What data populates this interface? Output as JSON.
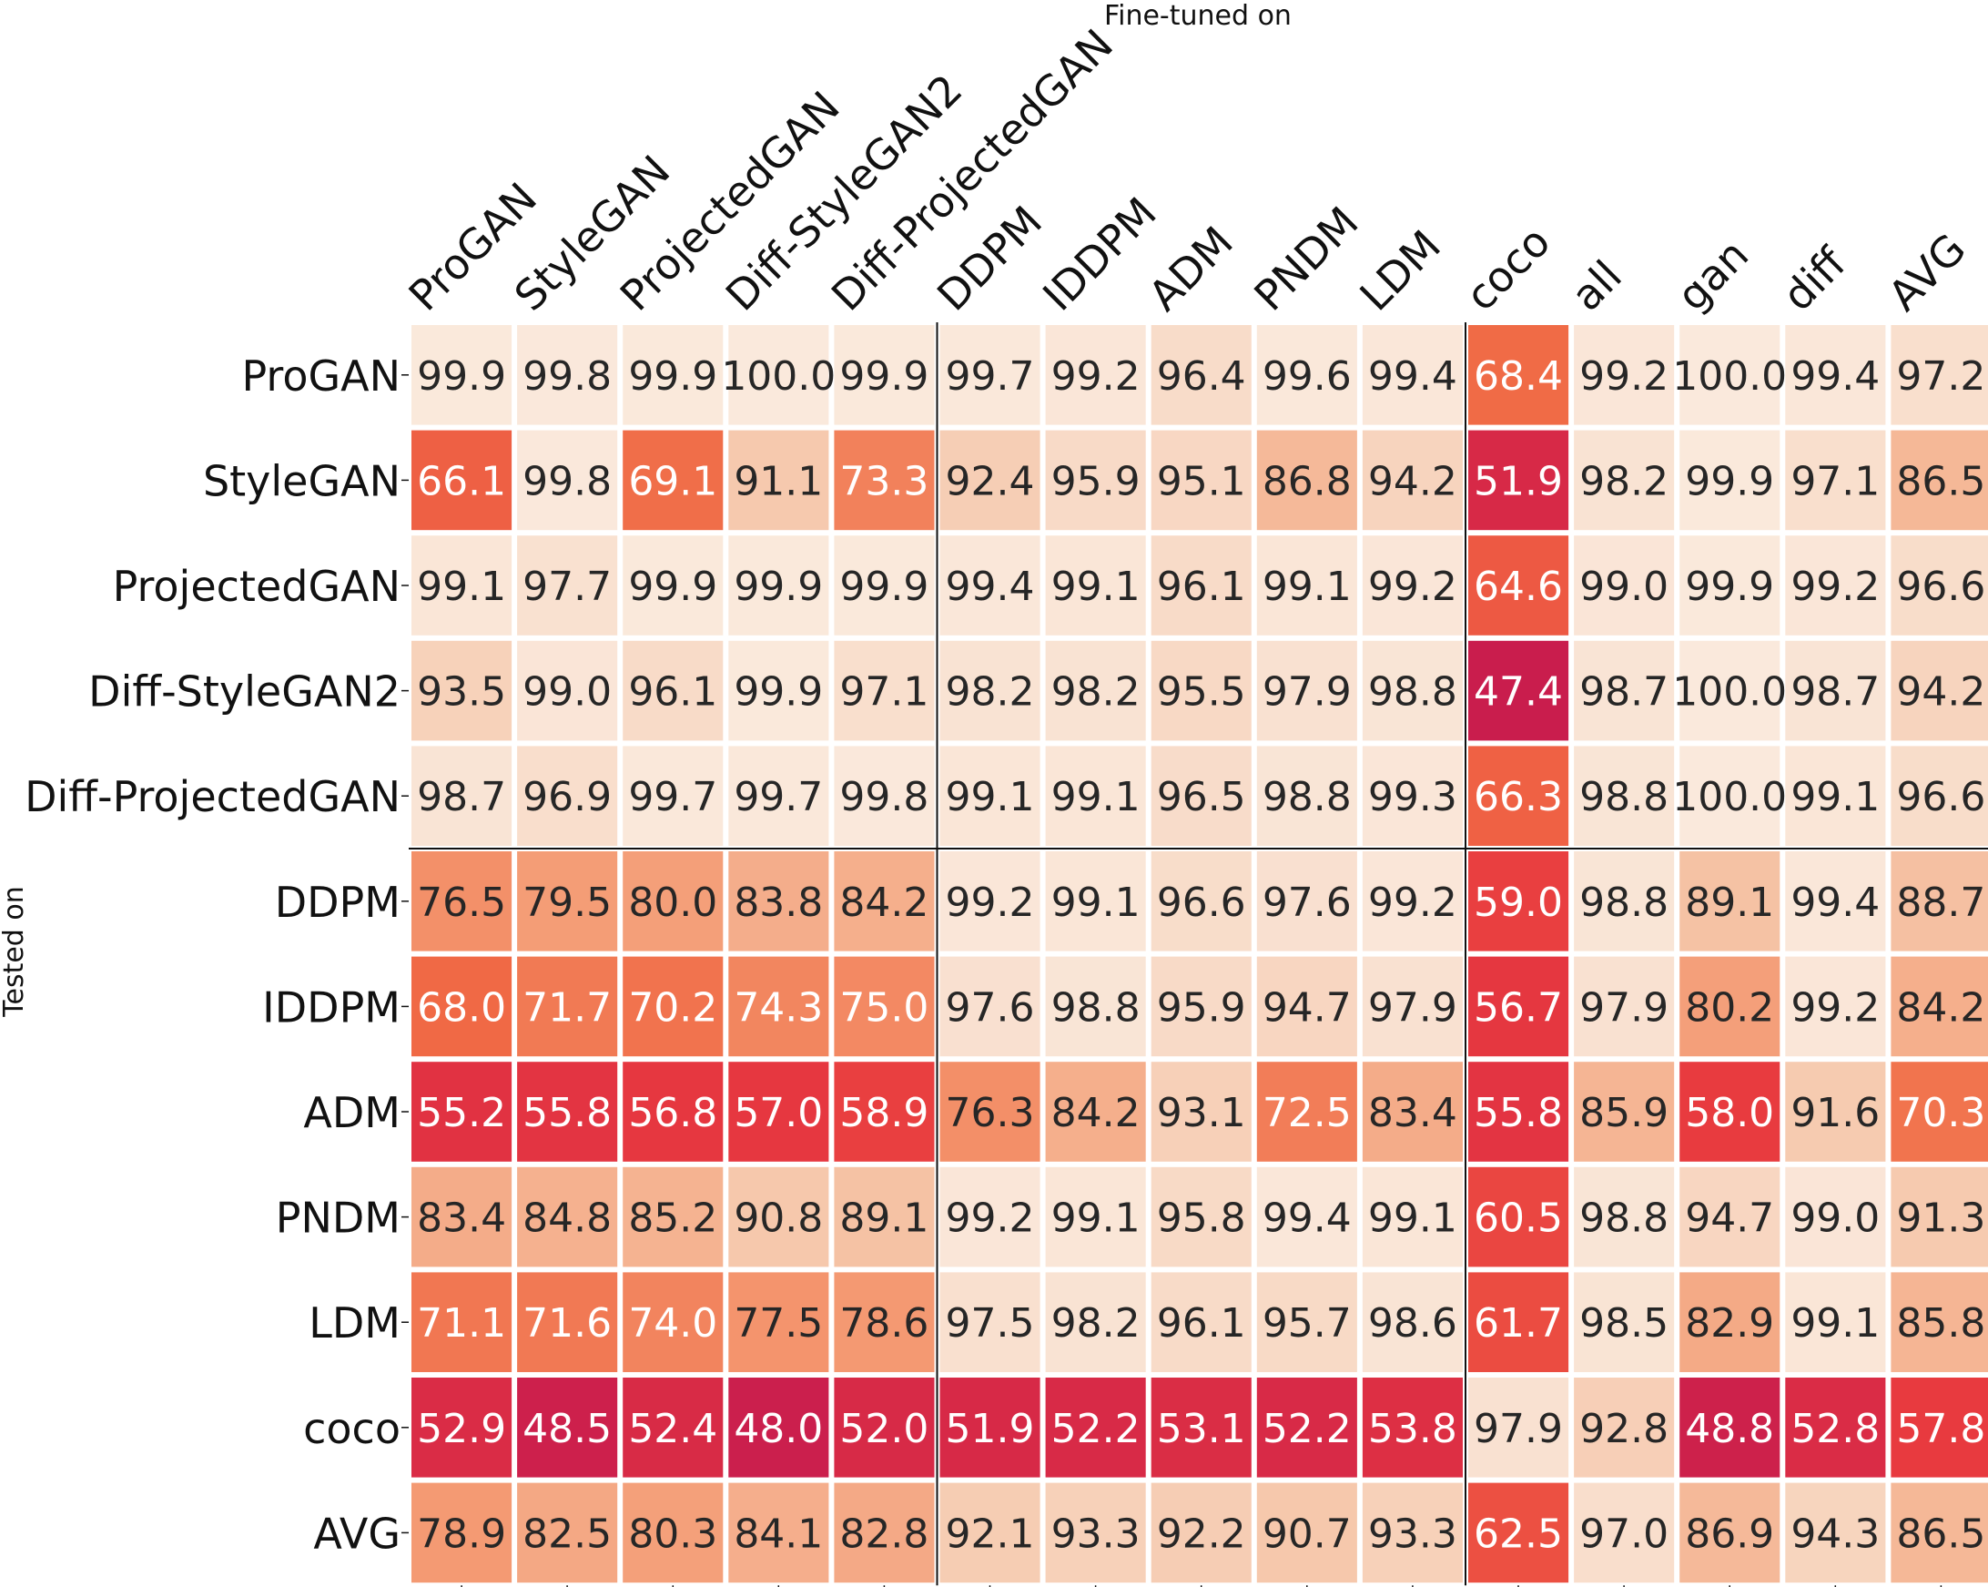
{
  "chart_data": {
    "type": "heatmap",
    "xlabel": "Fine-tuned on",
    "ylabel": "Tested on",
    "columns": [
      "ProGAN",
      "StyleGAN",
      "ProjectedGAN",
      "Diff-StyleGAN2",
      "Diff-ProjectedGAN",
      "DDPM",
      "IDDPM",
      "ADM",
      "PNDM",
      "LDM",
      "coco",
      "all",
      "gan",
      "diff",
      "AVG"
    ],
    "rows": [
      "ProGAN",
      "StyleGAN",
      "ProjectedGAN",
      "Diff-StyleGAN2",
      "Diff-ProjectedGAN",
      "DDPM",
      "IDDPM",
      "ADM",
      "PNDM",
      "LDM",
      "coco",
      "AVG"
    ],
    "values": [
      [
        99.9,
        99.8,
        99.9,
        100.0,
        99.9,
        99.7,
        99.2,
        96.4,
        99.6,
        99.4,
        68.4,
        99.2,
        100.0,
        99.4,
        97.2
      ],
      [
        66.1,
        99.8,
        69.1,
        91.1,
        73.3,
        92.4,
        95.9,
        95.1,
        86.8,
        94.2,
        51.9,
        98.2,
        99.9,
        97.1,
        86.5
      ],
      [
        99.1,
        97.7,
        99.9,
        99.9,
        99.9,
        99.4,
        99.1,
        96.1,
        99.1,
        99.2,
        64.6,
        99.0,
        99.9,
        99.2,
        96.6
      ],
      [
        93.5,
        99.0,
        96.1,
        99.9,
        97.1,
        98.2,
        98.2,
        95.5,
        97.9,
        98.8,
        47.4,
        98.7,
        100.0,
        98.7,
        94.2
      ],
      [
        98.7,
        96.9,
        99.7,
        99.7,
        99.8,
        99.1,
        99.1,
        96.5,
        98.8,
        99.3,
        66.3,
        98.8,
        100.0,
        99.1,
        96.6
      ],
      [
        76.5,
        79.5,
        80.0,
        83.8,
        84.2,
        99.2,
        99.1,
        96.6,
        97.6,
        99.2,
        59.0,
        98.8,
        89.1,
        99.4,
        88.7
      ],
      [
        68.0,
        71.7,
        70.2,
        74.3,
        75.0,
        97.6,
        98.8,
        95.9,
        94.7,
        97.9,
        56.7,
        97.9,
        80.2,
        99.2,
        84.2
      ],
      [
        55.2,
        55.8,
        56.8,
        57.0,
        58.9,
        76.3,
        84.2,
        93.1,
        72.5,
        83.4,
        55.8,
        85.9,
        58.0,
        91.6,
        70.3
      ],
      [
        83.4,
        84.8,
        85.2,
        90.8,
        89.1,
        99.2,
        99.1,
        95.8,
        99.4,
        99.1,
        60.5,
        98.8,
        94.7,
        99.0,
        91.3
      ],
      [
        71.1,
        71.6,
        74.0,
        77.5,
        78.6,
        97.5,
        98.2,
        96.1,
        95.7,
        98.6,
        61.7,
        98.5,
        82.9,
        99.1,
        85.8
      ],
      [
        52.9,
        48.5,
        52.4,
        48.0,
        52.0,
        51.9,
        52.2,
        53.1,
        52.2,
        53.8,
        97.9,
        92.8,
        48.8,
        52.8,
        57.8
      ],
      [
        78.9,
        82.5,
        80.3,
        84.1,
        82.8,
        92.1,
        93.3,
        92.2,
        90.7,
        93.3,
        62.5,
        97.0,
        86.9,
        94.3,
        86.5
      ]
    ],
    "value_range": [
      47,
      100
    ],
    "colormap": [
      "#fae9dc",
      "#f5c3a5",
      "#f49a73",
      "#f06a45",
      "#e8393f",
      "#c81c4e"
    ],
    "grid": false,
    "legend": "none"
  }
}
